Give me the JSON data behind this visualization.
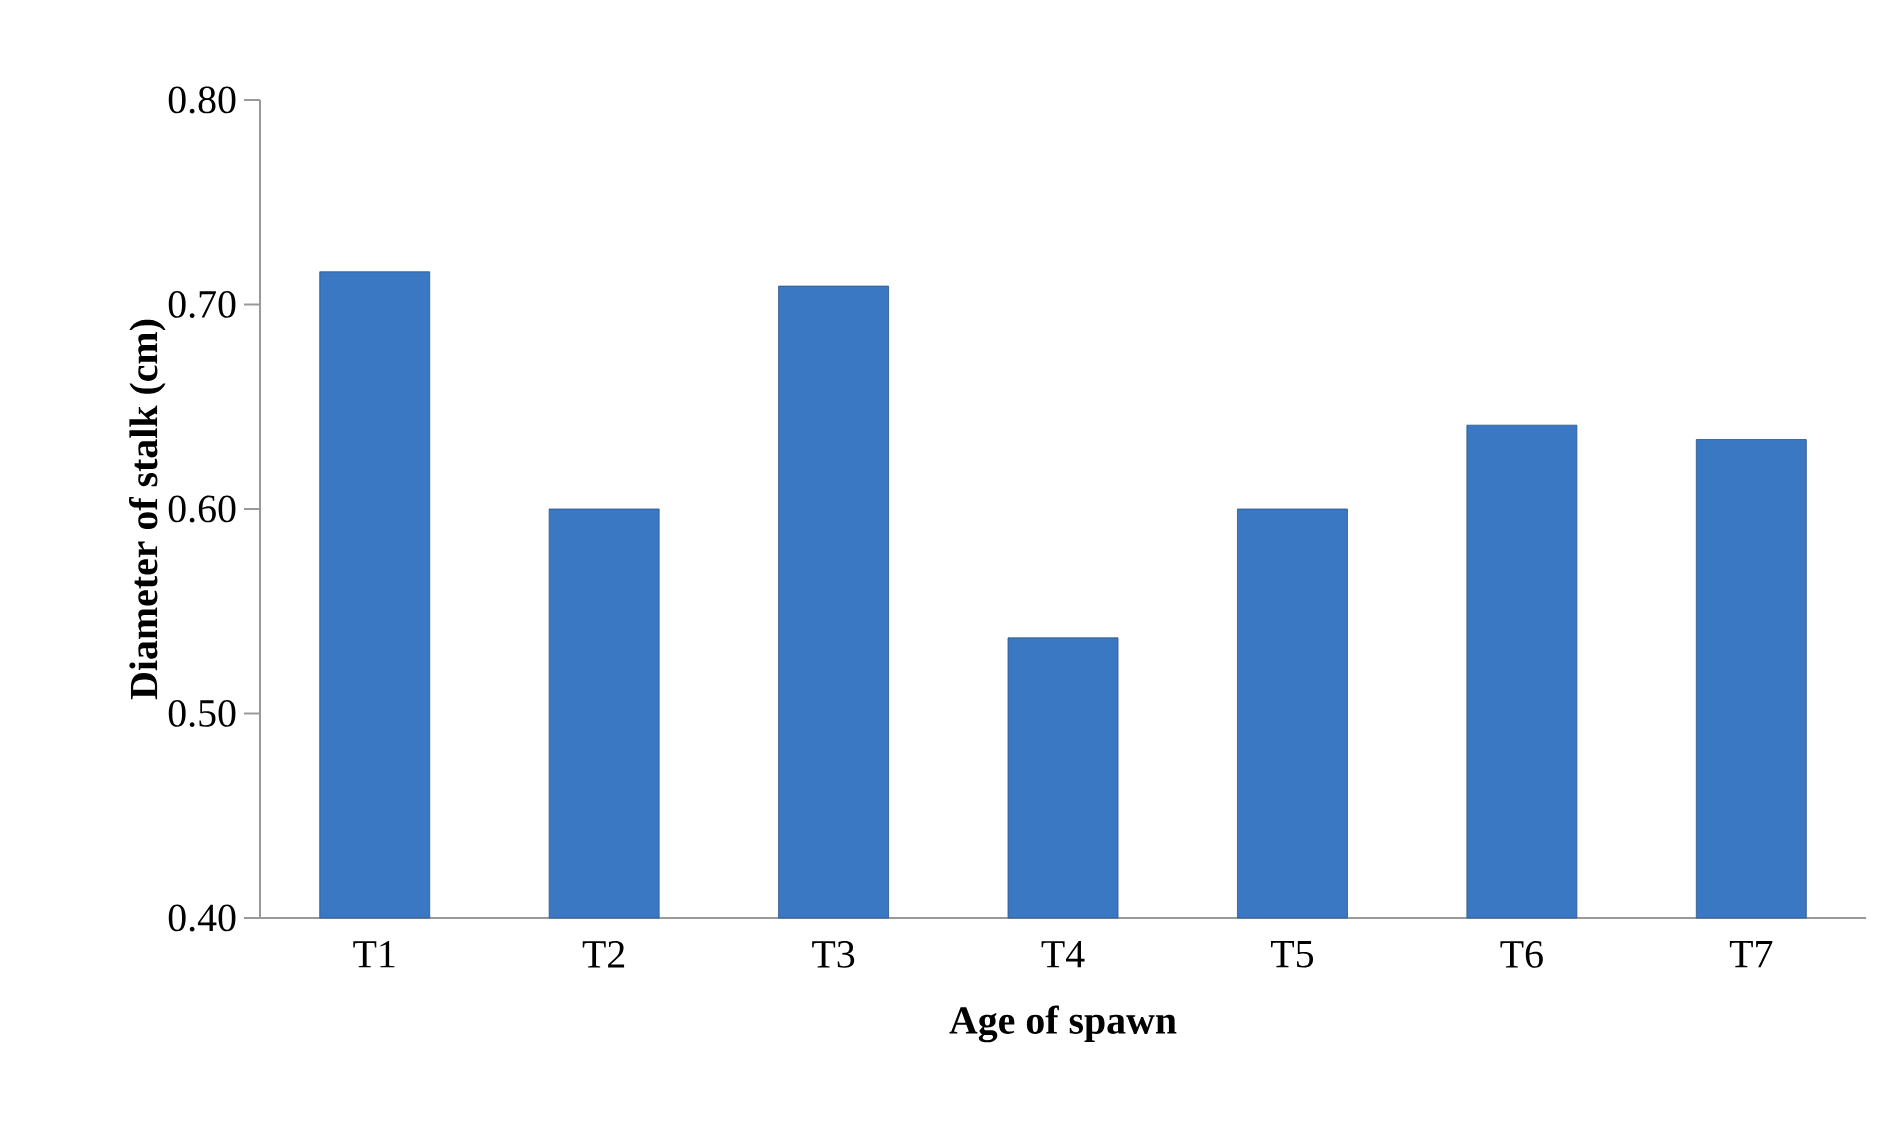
{
  "chart_data": {
    "type": "bar",
    "xlabel": "Age of spawn",
    "ylabel": "Diameter of stalk (cm)",
    "categories": [
      "T1",
      "T2",
      "T3",
      "T4",
      "T5",
      "T6",
      "T7"
    ],
    "values": [
      0.716,
      0.6,
      0.709,
      0.537,
      0.6,
      0.641,
      0.634
    ],
    "color": "#3b78c4",
    "ylim": [
      0.4,
      0.8
    ],
    "yticks": [
      {
        "value": 0.4,
        "label": "0.40"
      },
      {
        "value": 0.5,
        "label": "0.50"
      },
      {
        "value": 0.6,
        "label": "0.60"
      },
      {
        "value": 0.7,
        "label": "0.70"
      },
      {
        "value": 0.8,
        "label": "0.80"
      }
    ],
    "grid": false
  }
}
